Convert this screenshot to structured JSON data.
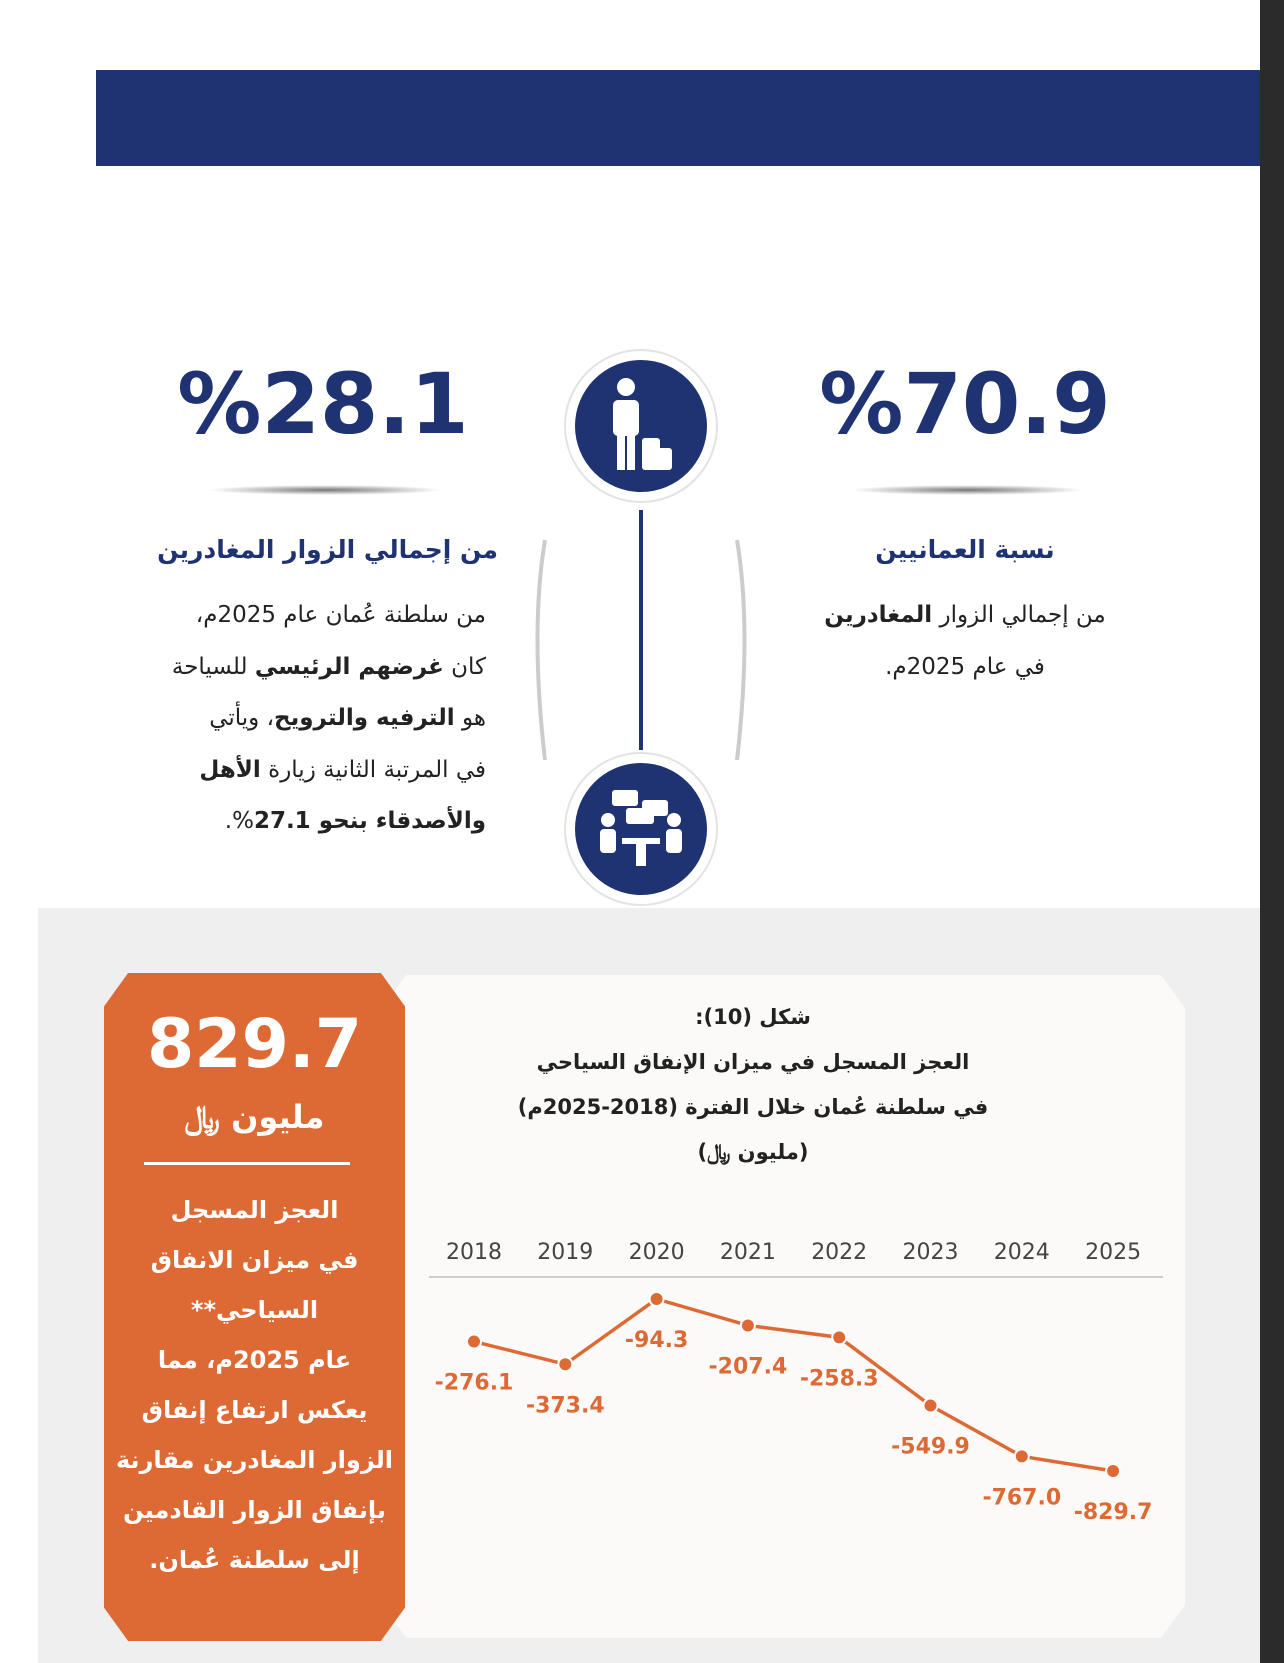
{
  "stats": [
    {
      "value": "%70.9",
      "title": "نسبة العمانيين",
      "lines": [
        [
          {
            "t": "من إجمالي الزوار ",
            "b": false
          },
          {
            "t": "المغادرين",
            "b": true
          }
        ],
        [
          {
            "t": "في عام 2025م.",
            "b": false
          }
        ]
      ]
    },
    {
      "value": "%28.1",
      "title": "من إجمالي الزوار المغادرين",
      "lines": [
        [
          {
            "t": "من سلطنة عُمان عام 2025م،",
            "b": false
          }
        ],
        [
          {
            "t": "كان ",
            "b": false
          },
          {
            "t": "غرضهم الرئيسي",
            "b": true
          },
          {
            "t": " للسياحة",
            "b": false
          }
        ],
        [
          {
            "t": "هو ",
            "b": false
          },
          {
            "t": "الترفيه والترويح",
            "b": true
          },
          {
            "t": "، ويأتي",
            "b": false
          }
        ],
        [
          {
            "t": "في المرتبة الثانية زيارة ",
            "b": false
          },
          {
            "t": "الأهل",
            "b": true
          }
        ],
        [
          {
            "t": "والأصدقاء بنحو 27.1",
            "b": true
          },
          {
            "t": "%.",
            "b": false
          }
        ]
      ]
    }
  ],
  "callout": {
    "value": "829.7",
    "unit": "مليون ﷼",
    "lines": [
      "العجز المسجل",
      "في ميزان الانفاق",
      "السياحي**",
      "عام 2025م، مما",
      "يعكس ارتفاع إنفاق",
      "الزوار المغادرين مقارنة",
      "بإنفاق الزوار القادمين",
      "إلى سلطنة عُمان."
    ]
  },
  "chart_data": {
    "type": "line",
    "title": [
      "شكل (10):",
      "العجز المسجل في ميزان الإنفاق السياحي",
      "في سلطنة عُمان خلال الفترة (2018-2025م)",
      "(مليون ﷼)"
    ],
    "categories": [
      "2018",
      "2019",
      "2020",
      "2021",
      "2022",
      "2023",
      "2024",
      "2025"
    ],
    "values": [
      -276.1,
      -373.4,
      -94.3,
      -207.4,
      -258.3,
      -549.9,
      -767.0,
      -829.7
    ],
    "value_labels": [
      "-276.1",
      "-373.4",
      "-94.3",
      "-207.4",
      "-258.3",
      "-549.9",
      "-767.0",
      "-829.7"
    ],
    "color": "#dd6a35"
  }
}
